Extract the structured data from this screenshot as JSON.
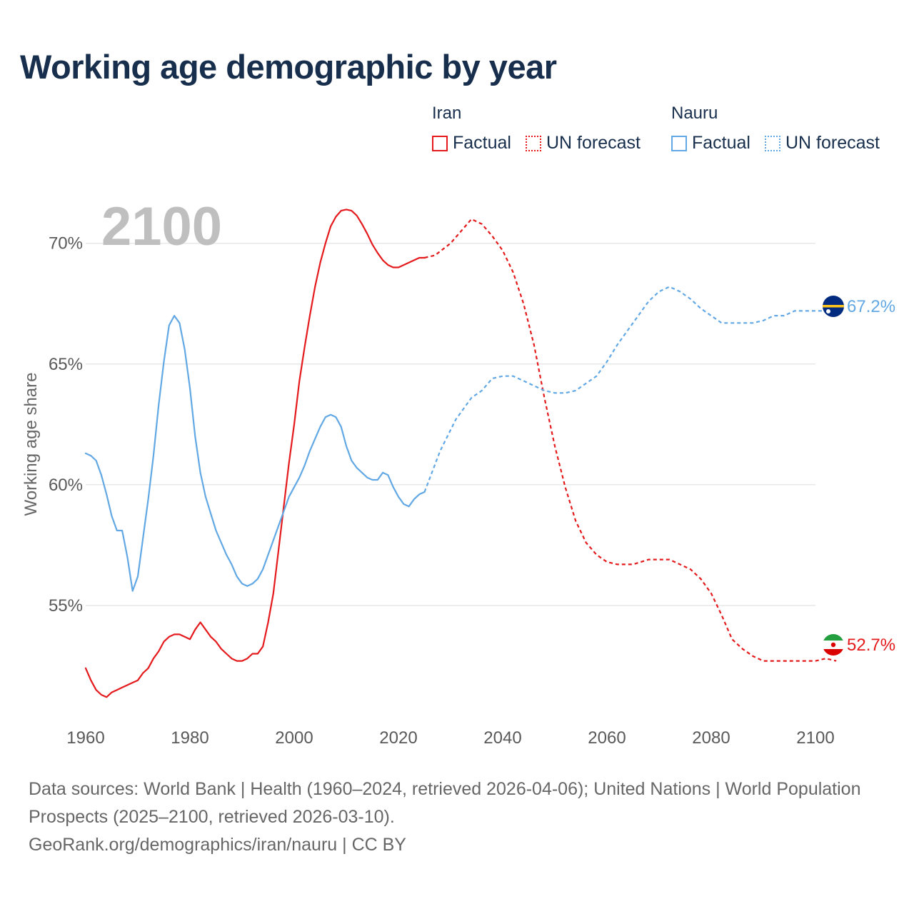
{
  "title": "Working age demographic by year",
  "legend": {
    "groups": [
      {
        "name": "Iran",
        "factual": "Factual",
        "forecast": "UN forecast"
      },
      {
        "name": "Nauru",
        "factual": "Factual",
        "forecast": "UN forecast"
      }
    ]
  },
  "colors": {
    "iran": "#e41a1c",
    "nauru": "#62a8e4",
    "year_watermark": "#bfbfbf",
    "grid": "#e8e8e8",
    "axis_text": "#595959"
  },
  "icons": {
    "iran_marker": "iran-flag-icon",
    "nauru_marker": "nauru-flag-icon"
  },
  "footer": {
    "sources": "Data sources: World Bank | Health (1960–2024, retrieved 2026-04-06); United Nations | World Population Prospects (2025–2100, retrieved 2026-03-10).",
    "link": "GeoRank.org/demographics/iran/nauru | CC BY"
  },
  "chart_data": {
    "type": "line",
    "title": "Working age demographic by year",
    "year_watermark": "2100",
    "xlabel": "",
    "ylabel": "Working age share",
    "xlim": [
      1960,
      2100
    ],
    "ylim": [
      50.5,
      71.5
    ],
    "x_ticks": [
      1960,
      1980,
      2000,
      2020,
      2040,
      2060,
      2080,
      2100
    ],
    "x_tick_labels": [
      "1960",
      "1980",
      "2000",
      "2020",
      "2040",
      "2060",
      "2080",
      "2100"
    ],
    "y_ticks": [
      55,
      60,
      65,
      70
    ],
    "y_tick_labels": [
      "55%",
      "60%",
      "65%",
      "70%"
    ],
    "grid": true,
    "series": [
      {
        "name": "Iran",
        "factual": {
          "x": [
            1960,
            1961,
            1962,
            1963,
            1964,
            1965,
            1966,
            1967,
            1968,
            1969,
            1970,
            1971,
            1972,
            1973,
            1974,
            1975,
            1976,
            1977,
            1978,
            1979,
            1980,
            1981,
            1982,
            1983,
            1984,
            1985,
            1986,
            1987,
            1988,
            1989,
            1990,
            1991,
            1992,
            1993,
            1994,
            1995,
            1996,
            1997,
            1998,
            1999,
            2000,
            2001,
            2002,
            2003,
            2004,
            2005,
            2006,
            2007,
            2008,
            2009,
            2010,
            2011,
            2012,
            2013,
            2014,
            2015,
            2016,
            2017,
            2018,
            2019,
            2020,
            2021,
            2022,
            2023,
            2024,
            2025
          ],
          "y": [
            52.4,
            51.9,
            51.5,
            51.3,
            51.2,
            51.4,
            51.5,
            51.6,
            51.7,
            51.8,
            51.9,
            52.2,
            52.4,
            52.8,
            53.1,
            53.5,
            53.7,
            53.8,
            53.8,
            53.7,
            53.6,
            54.0,
            54.3,
            54.0,
            53.7,
            53.5,
            53.2,
            53.0,
            52.8,
            52.7,
            52.7,
            52.8,
            53.0,
            53.0,
            53.3,
            54.3,
            55.5,
            57.3,
            59.1,
            60.9,
            62.5,
            64.3,
            65.7,
            67.0,
            68.2,
            69.2,
            70.0,
            70.7,
            71.1,
            71.35,
            71.4,
            71.35,
            71.15,
            70.8,
            70.4,
            69.95,
            69.6,
            69.3,
            69.1,
            69.0,
            69.0,
            69.1,
            69.2,
            69.3,
            69.4,
            69.4
          ]
        },
        "forecast": {
          "x": [
            2025,
            2027,
            2030,
            2033,
            2034,
            2036,
            2038,
            2040,
            2042,
            2044,
            2046,
            2048,
            2050,
            2052,
            2054,
            2056,
            2058,
            2060,
            2062,
            2065,
            2068,
            2072,
            2074,
            2076,
            2078,
            2080,
            2082,
            2084,
            2086,
            2088,
            2090,
            2094,
            2098,
            2100,
            2102,
            2104
          ],
          "y": [
            69.4,
            69.5,
            70.0,
            70.75,
            71.0,
            70.8,
            70.3,
            69.7,
            68.8,
            67.5,
            65.8,
            63.6,
            61.6,
            59.9,
            58.5,
            57.6,
            57.1,
            56.8,
            56.7,
            56.7,
            56.9,
            56.9,
            56.7,
            56.5,
            56.1,
            55.5,
            54.6,
            53.6,
            53.2,
            52.9,
            52.7,
            52.7,
            52.7,
            52.7,
            52.8,
            52.7
          ]
        },
        "last_value_label": "52.7%"
      },
      {
        "name": "Nauru",
        "factual": {
          "x": [
            1960,
            1961,
            1962,
            1963,
            1964,
            1965,
            1966,
            1967,
            1968,
            1969,
            1970,
            1971,
            1972,
            1973,
            1974,
            1975,
            1976,
            1977,
            1978,
            1979,
            1980,
            1981,
            1982,
            1983,
            1984,
            1985,
            1986,
            1987,
            1988,
            1989,
            1990,
            1991,
            1992,
            1993,
            1994,
            1995,
            1996,
            1997,
            1998,
            1999,
            2000,
            2001,
            2002,
            2003,
            2004,
            2005,
            2006,
            2007,
            2008,
            2009,
            2010,
            2011,
            2012,
            2013,
            2014,
            2015,
            2016,
            2017,
            2018,
            2019,
            2020,
            2021,
            2022,
            2023,
            2024,
            2025
          ],
          "y": [
            61.3,
            61.2,
            61.0,
            60.4,
            59.6,
            58.7,
            58.1,
            58.1,
            57.0,
            55.6,
            56.2,
            57.8,
            59.4,
            61.2,
            63.3,
            65.1,
            66.6,
            67.0,
            66.7,
            65.6,
            64.0,
            62.0,
            60.5,
            59.5,
            58.8,
            58.1,
            57.6,
            57.1,
            56.7,
            56.2,
            55.9,
            55.8,
            55.9,
            56.1,
            56.5,
            57.1,
            57.7,
            58.3,
            58.9,
            59.5,
            59.9,
            60.3,
            60.8,
            61.4,
            61.9,
            62.4,
            62.8,
            62.9,
            62.8,
            62.4,
            61.6,
            61.0,
            60.7,
            60.5,
            60.3,
            60.2,
            60.2,
            60.5,
            60.4,
            59.9,
            59.5,
            59.2,
            59.1,
            59.4,
            59.6,
            59.7
          ]
        },
        "forecast": {
          "x": [
            2025,
            2028,
            2031,
            2034,
            2036,
            2038,
            2040,
            2042,
            2044,
            2046,
            2048,
            2050,
            2052,
            2054,
            2056,
            2058,
            2060,
            2062,
            2064,
            2066,
            2068,
            2070,
            2072,
            2074,
            2076,
            2078,
            2080,
            2082,
            2084,
            2086,
            2088,
            2090,
            2092,
            2094,
            2096,
            2098,
            2100,
            2102,
            2104
          ],
          "y": [
            59.7,
            61.4,
            62.7,
            63.6,
            63.9,
            64.4,
            64.5,
            64.5,
            64.3,
            64.1,
            63.9,
            63.8,
            63.8,
            63.9,
            64.2,
            64.5,
            65.1,
            65.8,
            66.4,
            67.0,
            67.6,
            68.0,
            68.2,
            68.0,
            67.7,
            67.3,
            67.0,
            66.7,
            66.7,
            66.7,
            66.7,
            66.8,
            67.0,
            67.0,
            67.2,
            67.2,
            67.2,
            67.2,
            67.2
          ]
        },
        "last_value_label": "67.2%"
      }
    ]
  }
}
